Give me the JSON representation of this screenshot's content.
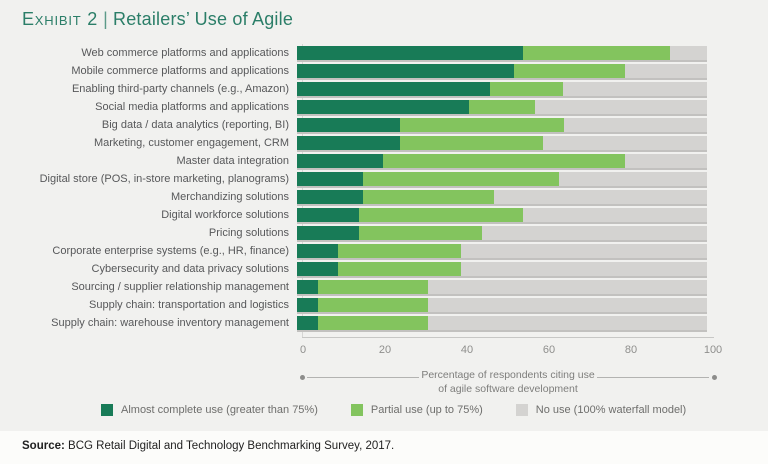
{
  "title": {
    "exhibit_label": "Exhibit 2",
    "separator": "|",
    "text": "Retailers’ Use of Agile",
    "color": "#2b7e68"
  },
  "colors": {
    "background": "#f1f1ef",
    "almost_complete": "#187b57",
    "partial": "#83c45e",
    "no_use": "#d4d3d1",
    "title_green": "#2b7e68"
  },
  "chart_data": {
    "type": "bar",
    "orientation": "horizontal",
    "stacked": true,
    "xlim": [
      0,
      100
    ],
    "x_ticks": [
      0,
      20,
      40,
      60,
      80,
      100
    ],
    "grid": false,
    "legend_position": "bottom",
    "xlabel_line1": "Percentage of respondents citing use",
    "xlabel_line2": "of agile software development",
    "categories": [
      "Web commerce platforms and applications",
      "Mobile commerce platforms and applications",
      "Enabling third-party channels (e.g., Amazon)",
      "Social media platforms and applications",
      "Big data / data analytics (reporting, BI)",
      "Marketing, customer engagement, CRM",
      "Master data integration",
      "Digital store (POS, in-store marketing, planograms)",
      "Merchandizing solutions",
      "Digital workforce solutions",
      "Pricing solutions",
      "Corporate enterprise systems (e.g., HR, finance)",
      "Cybersecurity and data privacy solutions",
      "Sourcing / supplier relationship management",
      "Supply chain: transportation and logistics",
      "Supply chain: warehouse inventory management"
    ],
    "series": [
      {
        "key": "almost-complete-use",
        "name": "Almost complete use (greater than 75%)",
        "color": "#187b57",
        "values": [
          55,
          53,
          47,
          42,
          25,
          25,
          21,
          16,
          16,
          15,
          15,
          10,
          10,
          5,
          5,
          5
        ]
      },
      {
        "key": "partial-use",
        "name": "Partial use (up to 75%)",
        "color": "#83c45e",
        "values": [
          36,
          27,
          18,
          16,
          40,
          35,
          59,
          48,
          32,
          40,
          30,
          30,
          30,
          27,
          27,
          27
        ]
      },
      {
        "key": "no-use",
        "name": "No use (100% waterfall model)",
        "color": "#d4d3d1",
        "values": [
          9,
          20,
          35,
          42,
          35,
          40,
          20,
          36,
          52,
          45,
          55,
          60,
          60,
          68,
          68,
          68
        ]
      }
    ]
  },
  "axis": {
    "tick_labels": [
      "0",
      "20",
      "40",
      "60",
      "80",
      "100"
    ]
  },
  "legend": {
    "items": [
      {
        "label": "Almost complete use (greater than 75%)",
        "color": "#187b57"
      },
      {
        "label": "Partial use (up to 75%)",
        "color": "#83c45e"
      },
      {
        "label": "No use (100% waterfall model)",
        "color": "#d4d3d1"
      }
    ]
  },
  "source": {
    "prefix": "Source:",
    "text": " BCG Retail Digital and Technology Benchmarking Survey, 2017."
  }
}
